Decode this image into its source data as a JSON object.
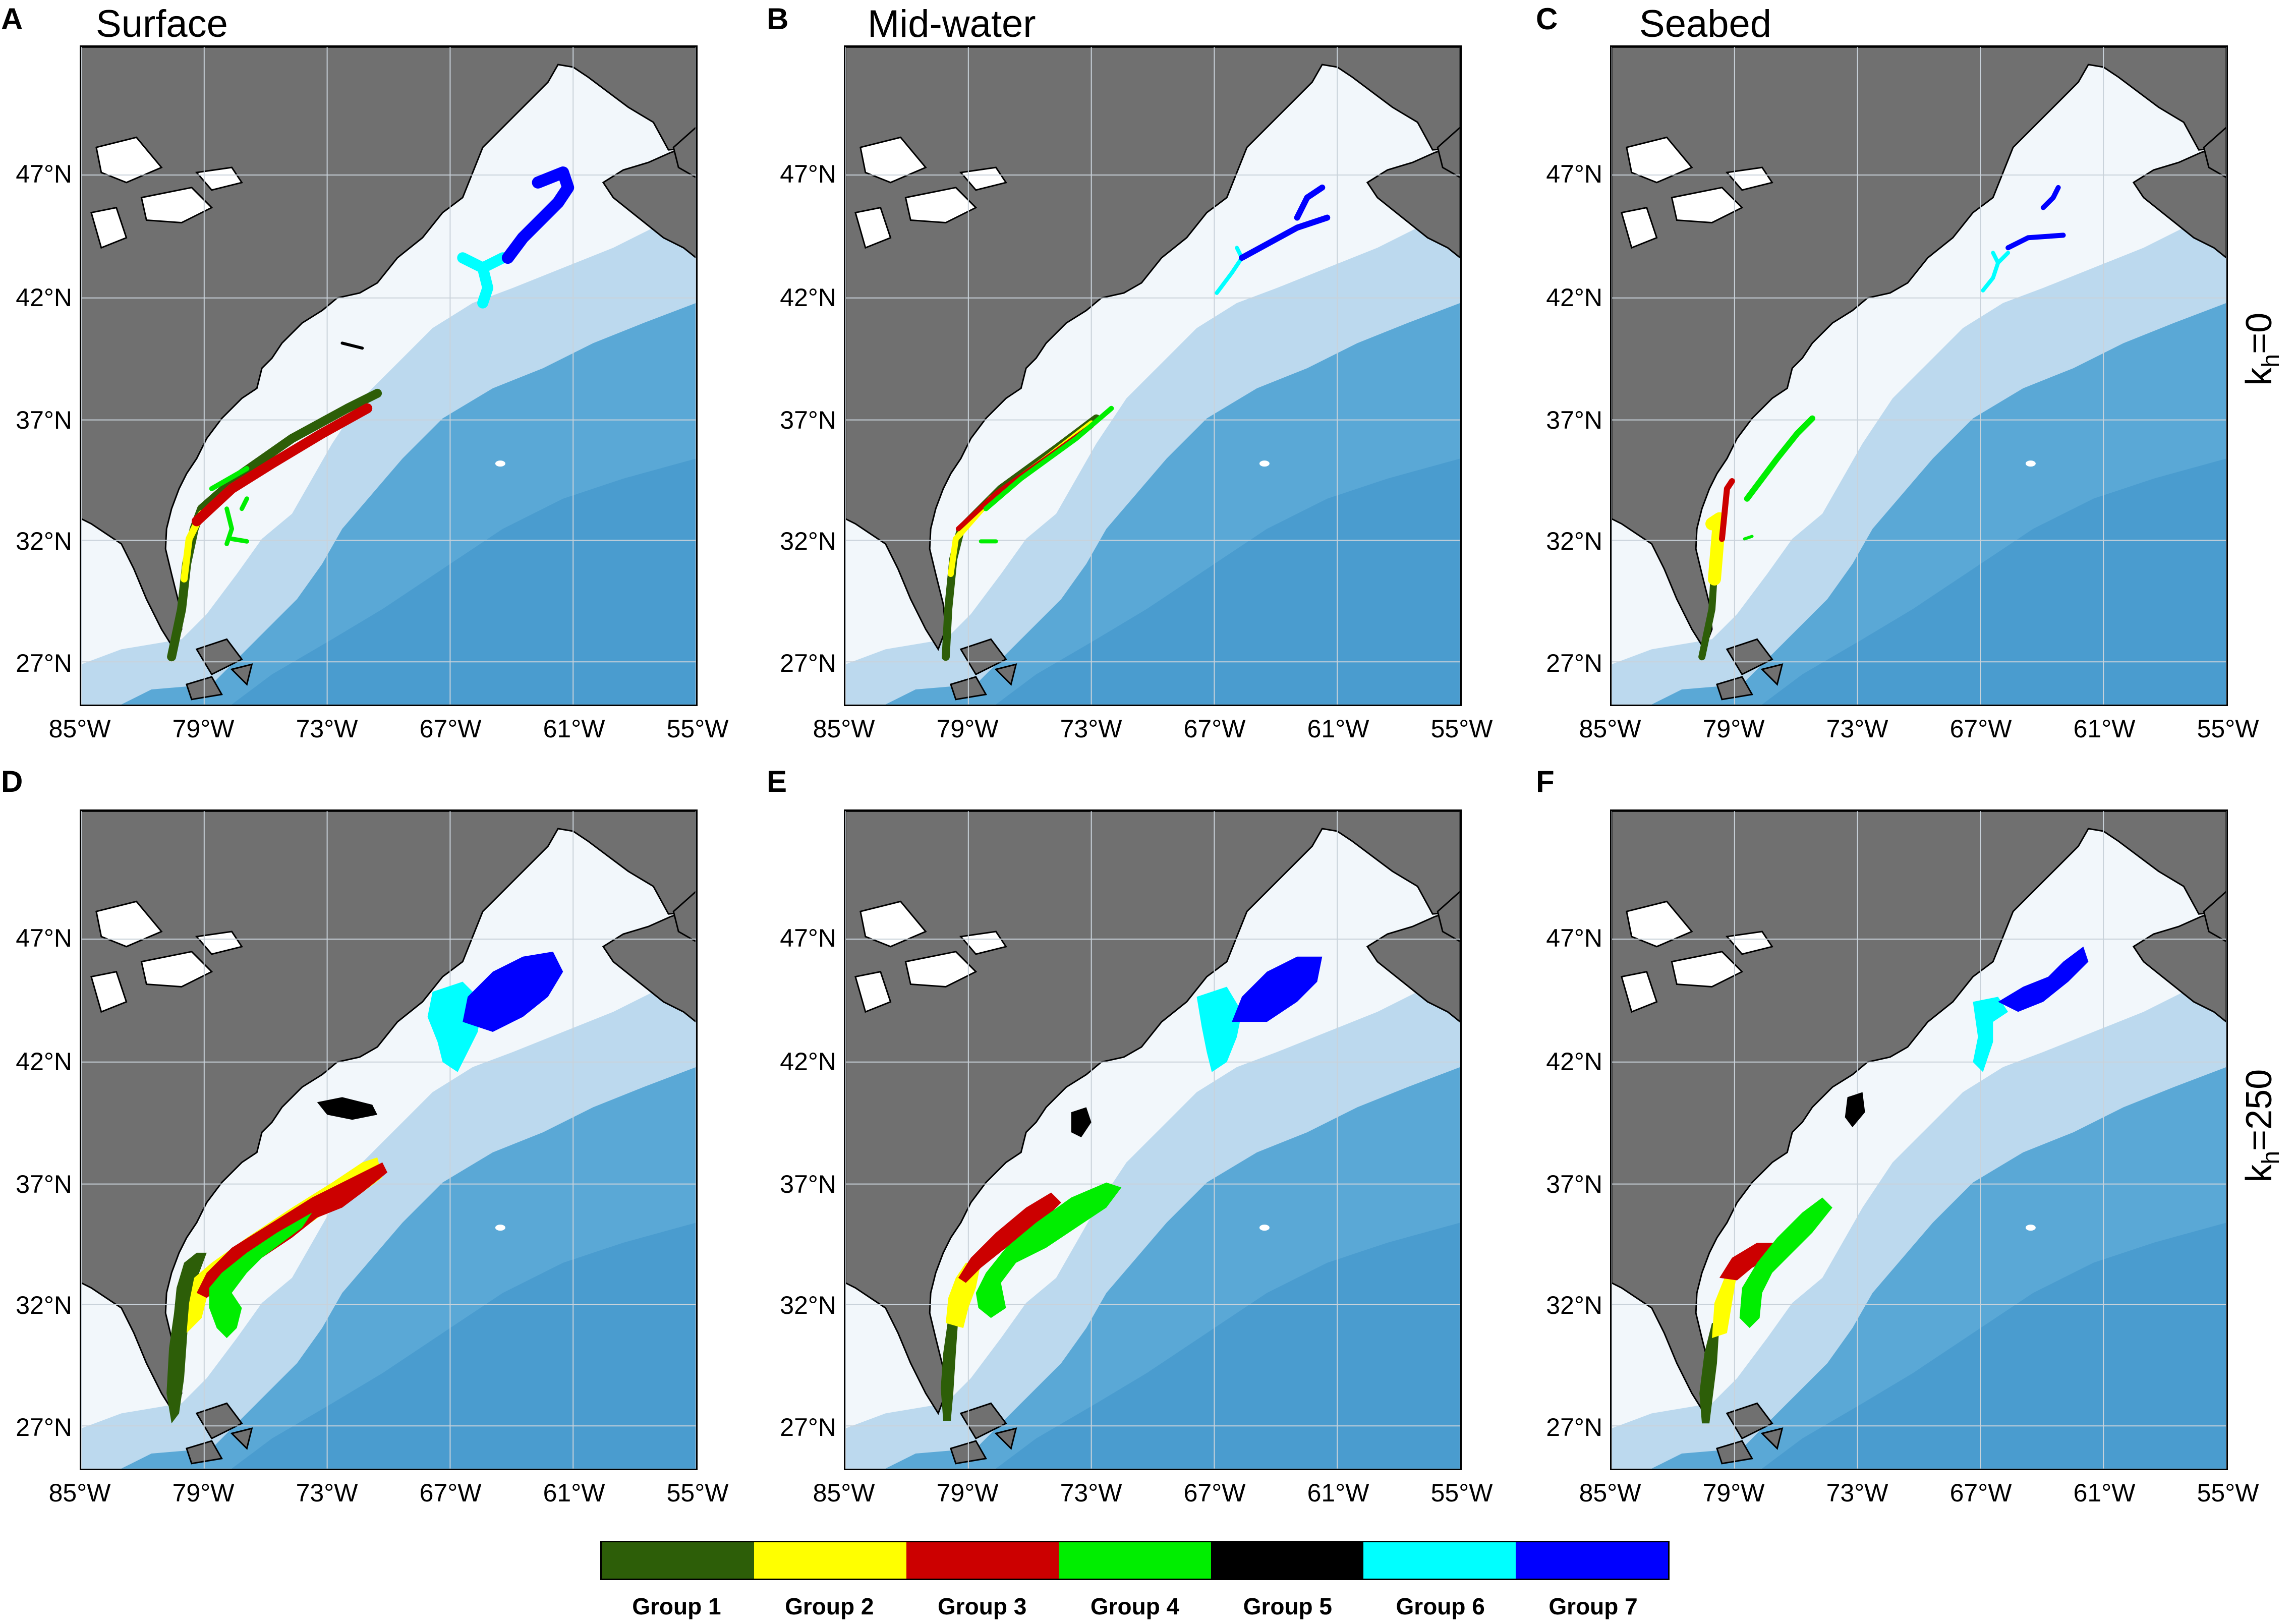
{
  "panels": [
    {
      "id": "A",
      "title": "Surface",
      "letter": "A"
    },
    {
      "id": "B",
      "title": "Mid-water",
      "letter": "B"
    },
    {
      "id": "C",
      "title": "Seabed",
      "letter": "C"
    },
    {
      "id": "D",
      "title": "",
      "letter": "D"
    },
    {
      "id": "E",
      "title": "",
      "letter": "E"
    },
    {
      "id": "F",
      "title": "",
      "letter": "F"
    }
  ],
  "row_labels": [
    {
      "base": "k",
      "sub": "h",
      "suffix": "=0"
    },
    {
      "base": "k",
      "sub": "h",
      "suffix": "=250"
    }
  ],
  "lat_ticks": [
    "47°N",
    "42°N",
    "37°N",
    "32°N",
    "27°N"
  ],
  "lon_ticks": [
    "85°W",
    "79°W",
    "73°W",
    "67°W",
    "61°W",
    "55°W"
  ],
  "legend": [
    {
      "label": "Group 1",
      "color": "#2d5e08"
    },
    {
      "label": "Group 2",
      "color": "#ffff00"
    },
    {
      "label": "Group 3",
      "color": "#cc0000"
    },
    {
      "label": "Group 4",
      "color": "#00ee00"
    },
    {
      "label": "Group 5",
      "color": "#000000"
    },
    {
      "label": "Group 6",
      "color": "#00ffff"
    },
    {
      "label": "Group 7",
      "color": "#0000ff"
    }
  ],
  "colors": {
    "land": "#707070",
    "shelf": "#f2f7fb",
    "slope": "#bcd9ee",
    "deep": "#5aa8d6",
    "abyss": "#4a9ccf"
  }
}
